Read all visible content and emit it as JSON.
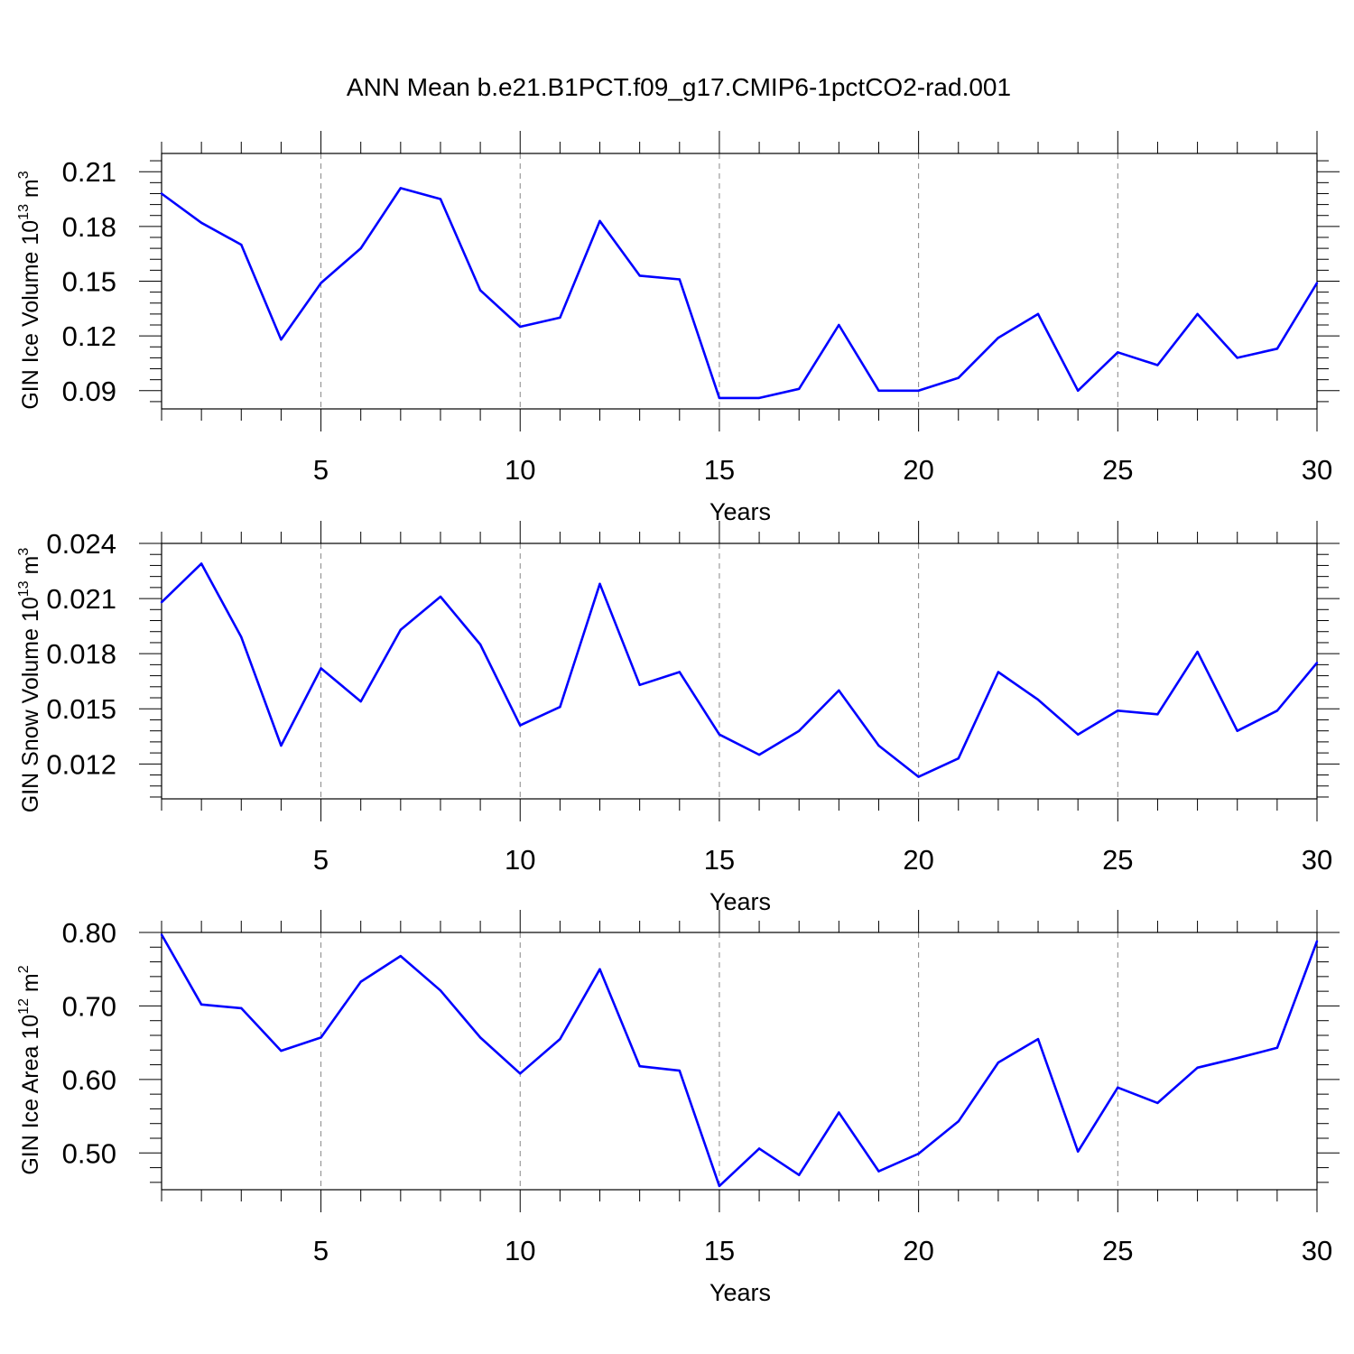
{
  "title": "ANN Mean b.e21.B1PCT.f09_g17.CMIP6-1pctCO2-rad.001",
  "line_color": "#0000ff",
  "chart_data": [
    {
      "type": "line",
      "ylabel": {
        "base": "GIN Ice Volume 10",
        "exp": "13",
        "unit": " m",
        "unit_exp": "3"
      },
      "xlabel": "Years",
      "xlim": [
        1,
        30
      ],
      "ylim": [
        0.08,
        0.22
      ],
      "xticks": [
        5,
        10,
        15,
        20,
        25,
        30
      ],
      "xtick_labels": [
        "5",
        "10",
        "15",
        "20",
        "25",
        "30"
      ],
      "yticks": [
        0.09,
        0.12,
        0.15,
        0.18,
        0.21
      ],
      "ytick_labels": [
        "0.09",
        "0.12",
        "0.15",
        "0.18",
        "0.21"
      ],
      "grid": "vertical dashed at major x ticks",
      "x": [
        1,
        2,
        3,
        4,
        5,
        6,
        7,
        8,
        9,
        10,
        11,
        12,
        13,
        14,
        15,
        16,
        17,
        18,
        19,
        20,
        21,
        22,
        23,
        24,
        25,
        26,
        27,
        28,
        29,
        30
      ],
      "values": [
        0.198,
        0.182,
        0.17,
        0.118,
        0.149,
        0.168,
        0.201,
        0.195,
        0.145,
        0.125,
        0.13,
        0.183,
        0.153,
        0.151,
        0.086,
        0.086,
        0.091,
        0.126,
        0.09,
        0.09,
        0.097,
        0.119,
        0.132,
        0.09,
        0.111,
        0.104,
        0.132,
        0.108,
        0.113,
        0.149
      ]
    },
    {
      "type": "line",
      "ylabel": {
        "base": "GIN Snow Volume 10",
        "exp": "13",
        "unit": " m",
        "unit_exp": "3"
      },
      "xlabel": "Years",
      "xlim": [
        1,
        30
      ],
      "ylim": [
        0.0101,
        0.024
      ],
      "xticks": [
        5,
        10,
        15,
        20,
        25,
        30
      ],
      "xtick_labels": [
        "5",
        "10",
        "15",
        "20",
        "25",
        "30"
      ],
      "yticks": [
        0.012,
        0.015,
        0.018,
        0.021,
        0.024
      ],
      "ytick_labels": [
        "0.012",
        "0.015",
        "0.018",
        "0.021",
        "0.024"
      ],
      "grid": "vertical dashed at major x ticks",
      "x": [
        1,
        2,
        3,
        4,
        5,
        6,
        7,
        8,
        9,
        10,
        11,
        12,
        13,
        14,
        15,
        16,
        17,
        18,
        19,
        20,
        21,
        22,
        23,
        24,
        25,
        26,
        27,
        28,
        29,
        30
      ],
      "values": [
        0.0208,
        0.0229,
        0.0189,
        0.013,
        0.0172,
        0.0154,
        0.0193,
        0.0211,
        0.0185,
        0.0141,
        0.0151,
        0.0218,
        0.0163,
        0.017,
        0.0136,
        0.0125,
        0.0138,
        0.016,
        0.013,
        0.0113,
        0.0123,
        0.017,
        0.0155,
        0.0136,
        0.0149,
        0.0147,
        0.0181,
        0.0138,
        0.0149,
        0.0175
      ]
    },
    {
      "type": "line",
      "ylabel": {
        "base": "GIN Ice Area 10",
        "exp": "12",
        "unit": " m",
        "unit_exp": "2"
      },
      "xlabel": "Years",
      "xlim": [
        1,
        30
      ],
      "ylim": [
        0.45,
        0.8
      ],
      "xticks": [
        5,
        10,
        15,
        20,
        25,
        30
      ],
      "xtick_labels": [
        "5",
        "10",
        "15",
        "20",
        "25",
        "30"
      ],
      "yticks": [
        0.5,
        0.6,
        0.7,
        0.8
      ],
      "ytick_labels": [
        "0.50",
        "0.60",
        "0.70",
        "0.80"
      ],
      "grid": "vertical dashed at major x ticks",
      "x": [
        1,
        2,
        3,
        4,
        5,
        6,
        7,
        8,
        9,
        10,
        11,
        12,
        13,
        14,
        15,
        16,
        17,
        18,
        19,
        20,
        21,
        22,
        23,
        24,
        25,
        26,
        27,
        28,
        29,
        30
      ],
      "values": [
        0.797,
        0.702,
        0.697,
        0.639,
        0.657,
        0.733,
        0.768,
        0.721,
        0.657,
        0.608,
        0.655,
        0.75,
        0.618,
        0.612,
        0.455,
        0.506,
        0.47,
        0.555,
        0.475,
        0.499,
        0.543,
        0.623,
        0.655,
        0.502,
        0.589,
        0.568,
        0.616,
        0.629,
        0.643,
        0.788
      ]
    }
  ]
}
